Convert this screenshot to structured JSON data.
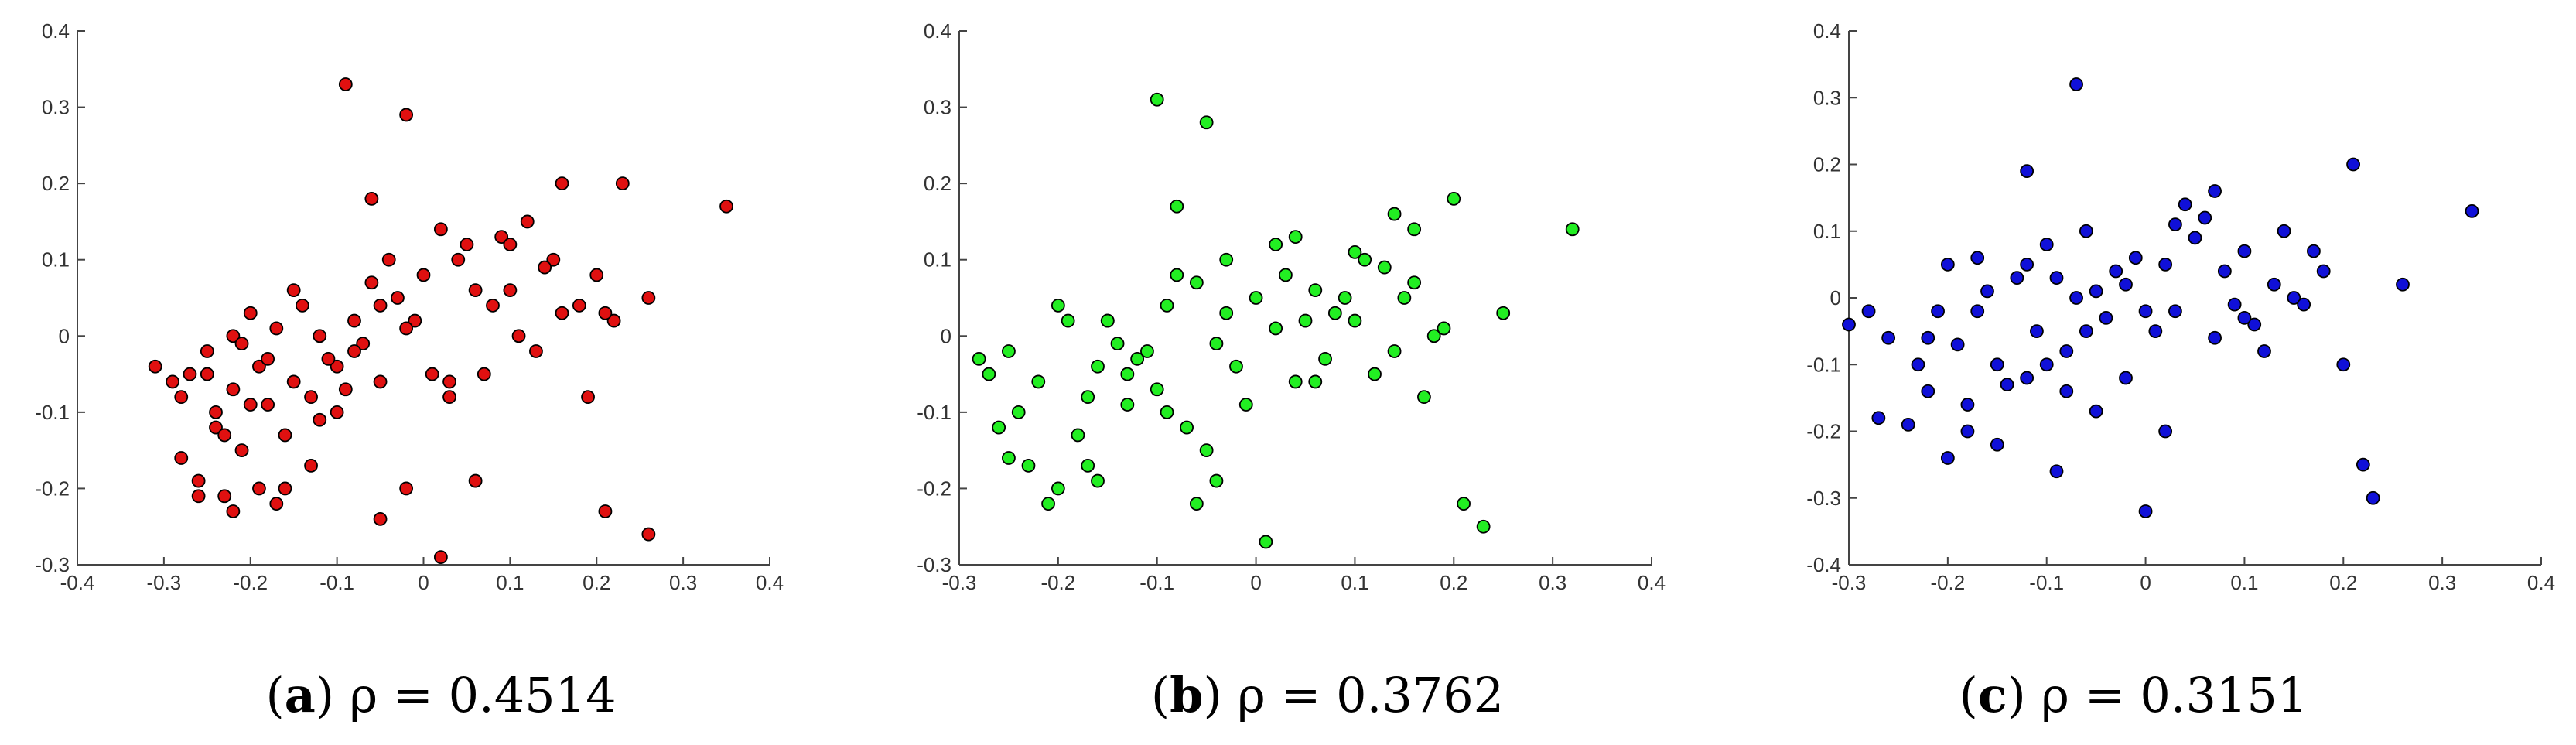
{
  "figure": {
    "panels": [
      {
        "letter": "a",
        "caption": "ρ = 0.4514"
      },
      {
        "letter": "b",
        "caption": "ρ = 0.3762"
      },
      {
        "letter": "c",
        "caption": "ρ = 0.3151"
      }
    ]
  },
  "chart_data": [
    {
      "type": "scatter",
      "panel": "a",
      "title": "",
      "xlabel": "",
      "ylabel": "",
      "xlim": [
        -0.4,
        0.4
      ],
      "ylim": [
        -0.3,
        0.4
      ],
      "xticks": [
        -0.4,
        -0.3,
        -0.2,
        -0.1,
        0,
        0.1,
        0.2,
        0.3,
        0.4
      ],
      "yticks": [
        -0.3,
        -0.2,
        -0.1,
        0,
        0.1,
        0.2,
        0.3,
        0.4
      ],
      "xtick_labels": [
        "-0.4",
        "-0.3",
        "-0.2",
        "-0.1",
        "0",
        "0.1",
        "0.2",
        "0.3",
        "0.4"
      ],
      "ytick_labels": [
        "-0.3",
        "-0.2",
        "-0.1",
        "0",
        "0.1",
        "0.2",
        "0.3",
        "0.4"
      ],
      "grid": false,
      "marker_color": "#e01010",
      "marker_edge": "#000000",
      "correlation": 0.4514,
      "series": [
        {
          "x": [
            -0.31,
            -0.29,
            -0.28,
            -0.27,
            -0.28,
            -0.26,
            -0.26,
            -0.24,
            -0.25,
            -0.23,
            -0.22,
            -0.21,
            -0.19,
            -0.17,
            -0.16,
            -0.13,
            -0.09,
            -0.02,
            -0.06,
            -0.02,
            -0.05,
            0.02,
            0.06,
            0.03,
            0.21,
            0.26,
            0.35,
            0.16,
            0.23,
            0.22,
            0.26,
            0.21,
            0.12,
            -0.2,
            -0.15,
            -0.25,
            -0.22,
            -0.18,
            -0.22,
            -0.24,
            -0.12,
            -0.1,
            -0.08,
            -0.05,
            0.0,
            0.05,
            0.1,
            0.15,
            0.2,
            0.13,
            0.08,
            0.03,
            -0.03,
            -0.07,
            -0.11,
            -0.15,
            -0.19,
            -0.21,
            -0.17,
            -0.13,
            -0.09,
            -0.05,
            -0.01,
            0.04,
            0.09,
            0.14,
            0.18,
            0.11,
            0.06,
            0.01,
            -0.04,
            -0.08,
            -0.12,
            -0.16,
            -0.2,
            -0.23,
            -0.14,
            -0.06,
            0.02,
            0.1,
            0.16,
            0.19,
            0.07,
            -0.02,
            -0.1,
            -0.18
          ],
          "y": [
            -0.04,
            -0.06,
            -0.08,
            -0.05,
            -0.16,
            -0.19,
            -0.21,
            -0.12,
            -0.05,
            -0.21,
            -0.23,
            -0.15,
            -0.2,
            -0.22,
            -0.2,
            -0.17,
            0.33,
            0.29,
            0.18,
            -0.2,
            -0.24,
            -0.29,
            -0.19,
            -0.06,
            -0.23,
            -0.26,
            0.17,
            0.2,
            0.2,
            0.02,
            0.05,
            0.03,
            0.15,
            0.03,
            0.06,
            -0.02,
            -0.07,
            -0.09,
            0.0,
            -0.1,
            0.0,
            -0.04,
            0.02,
            -0.06,
            0.08,
            0.12,
            0.06,
            0.1,
            0.08,
            -0.02,
            0.04,
            -0.08,
            0.05,
            -0.01,
            -0.03,
            -0.06,
            -0.04,
            -0.01,
            0.01,
            -0.08,
            -0.07,
            0.04,
            0.02,
            0.1,
            0.13,
            0.09,
            0.04,
            0.0,
            0.06,
            -0.05,
            0.1,
            -0.02,
            -0.11,
            -0.13,
            -0.09,
            -0.13,
            0.04,
            0.07,
            0.14,
            0.12,
            0.03,
            -0.08,
            -0.05,
            0.01,
            -0.1,
            -0.03
          ]
        }
      ]
    },
    {
      "type": "scatter",
      "panel": "b",
      "title": "",
      "xlabel": "",
      "ylabel": "",
      "xlim": [
        -0.3,
        0.4
      ],
      "ylim": [
        -0.3,
        0.4
      ],
      "xticks": [
        -0.3,
        -0.2,
        -0.1,
        0,
        0.1,
        0.2,
        0.3,
        0.4
      ],
      "yticks": [
        -0.3,
        -0.2,
        -0.1,
        0,
        0.1,
        0.2,
        0.3,
        0.4
      ],
      "xtick_labels": [
        "-0.3",
        "-0.2",
        "-0.1",
        "0",
        "0.1",
        "0.2",
        "0.3",
        "0.4"
      ],
      "ytick_labels": [
        "-0.3",
        "-0.2",
        "-0.1",
        "0",
        "0.1",
        "0.2",
        "0.3",
        "0.4"
      ],
      "grid": false,
      "marker_color": "#22ee22",
      "marker_edge": "#000000",
      "correlation": 0.3762,
      "series": [
        {
          "x": [
            -0.28,
            -0.27,
            -0.25,
            -0.26,
            -0.25,
            -0.23,
            -0.2,
            -0.21,
            -0.17,
            -0.16,
            -0.1,
            -0.08,
            -0.05,
            -0.06,
            0.01,
            -0.04,
            0.21,
            0.2,
            0.23,
            0.32,
            0.25,
            0.19,
            0.17,
            0.14,
            -0.2,
            -0.15,
            -0.12,
            -0.08,
            -0.03,
            0.02,
            0.06,
            0.1,
            0.13,
            0.16,
            0.08,
            0.04,
            0.0,
            -0.04,
            -0.09,
            -0.13,
            -0.17,
            -0.22,
            -0.24,
            -0.19,
            -0.14,
            -0.1,
            -0.06,
            -0.02,
            0.03,
            0.07,
            0.11,
            0.15,
            0.18,
            0.12,
            0.05,
            -0.01,
            -0.07,
            -0.11,
            -0.16,
            -0.18,
            -0.13,
            -0.05,
            0.02,
            0.09,
            0.14,
            0.06,
            -0.03,
            -0.09,
            -0.15,
            0.04,
            0.1,
            0.16
          ],
          "y": [
            -0.03,
            -0.05,
            -0.02,
            -0.12,
            -0.16,
            -0.17,
            -0.2,
            -0.22,
            -0.17,
            -0.19,
            0.31,
            0.17,
            0.28,
            -0.22,
            -0.27,
            -0.19,
            -0.22,
            0.18,
            -0.25,
            0.14,
            0.03,
            0.01,
            -0.08,
            0.16,
            0.04,
            0.02,
            -0.03,
            0.08,
            0.1,
            0.12,
            0.06,
            0.11,
            0.09,
            0.14,
            0.03,
            -0.06,
            0.05,
            -0.01,
            0.04,
            -0.05,
            -0.08,
            -0.06,
            -0.1,
            0.02,
            -0.01,
            -0.07,
            0.07,
            -0.04,
            0.08,
            -0.03,
            0.1,
            0.05,
            0.0,
            -0.05,
            0.02,
            -0.09,
            -0.12,
            -0.02,
            -0.04,
            -0.13,
            -0.09,
            -0.15,
            0.01,
            0.05,
            -0.02,
            -0.06,
            0.03,
            -0.1,
            0.02,
            0.13,
            0.02,
            0.07
          ]
        }
      ]
    },
    {
      "type": "scatter",
      "panel": "c",
      "title": "",
      "xlabel": "",
      "ylabel": "",
      "xlim": [
        -0.3,
        0.4
      ],
      "ylim": [
        -0.4,
        0.4
      ],
      "xticks": [
        -0.3,
        -0.2,
        -0.1,
        0,
        0.1,
        0.2,
        0.3,
        0.4
      ],
      "yticks": [
        -0.4,
        -0.3,
        -0.2,
        -0.1,
        0,
        0.1,
        0.2,
        0.3,
        0.4
      ],
      "xtick_labels": [
        "-0.3",
        "-0.2",
        "-0.1",
        "0",
        "0.1",
        "0.2",
        "0.3",
        "0.4"
      ],
      "ytick_labels": [
        "-0.4",
        "-0.3",
        "-0.2",
        "-0.1",
        "0",
        "0.1",
        "0.2",
        "0.3",
        "0.4"
      ],
      "grid": false,
      "marker_color": "#1010d8",
      "marker_edge": "#000000",
      "correlation": 0.3151,
      "series": [
        {
          "x": [
            -0.3,
            -0.28,
            -0.26,
            -0.27,
            -0.24,
            -0.22,
            -0.2,
            -0.18,
            -0.15,
            -0.12,
            -0.07,
            -0.09,
            0.0,
            0.02,
            0.21,
            0.22,
            0.23,
            0.26,
            0.33,
            0.2,
            -0.05,
            -0.08,
            -0.2,
            -0.17,
            -0.13,
            -0.1,
            -0.06,
            -0.02,
            0.02,
            0.06,
            0.1,
            0.14,
            0.18,
            0.15,
            0.11,
            0.07,
            0.03,
            -0.01,
            -0.04,
            -0.08,
            -0.11,
            -0.15,
            -0.19,
            -0.23,
            -0.21,
            -0.16,
            -0.12,
            -0.07,
            -0.03,
            0.01,
            0.05,
            0.09,
            0.13,
            0.17,
            0.12,
            0.08,
            0.04,
            0.0,
            -0.05,
            -0.1,
            -0.14,
            -0.18,
            -0.22,
            -0.12,
            -0.06,
            0.03,
            0.1,
            0.16,
            0.07,
            -0.02,
            -0.09,
            -0.17
          ],
          "y": [
            -0.04,
            -0.02,
            -0.06,
            -0.18,
            -0.19,
            -0.14,
            -0.24,
            -0.2,
            -0.22,
            0.19,
            0.32,
            -0.26,
            -0.32,
            -0.2,
            0.2,
            -0.25,
            -0.3,
            0.02,
            0.13,
            -0.1,
            -0.17,
            -0.14,
            0.05,
            0.06,
            0.03,
            0.08,
            0.1,
            0.02,
            0.05,
            0.12,
            0.07,
            0.1,
            0.04,
            0.0,
            -0.04,
            -0.06,
            -0.02,
            0.06,
            -0.03,
            -0.08,
            -0.05,
            -0.1,
            -0.07,
            -0.1,
            -0.02,
            0.01,
            -0.12,
            0.0,
            0.04,
            -0.05,
            0.09,
            -0.01,
            0.02,
            0.07,
            -0.08,
            0.04,
            0.14,
            -0.02,
            0.01,
            -0.1,
            -0.13,
            -0.16,
            -0.06,
            0.05,
            -0.05,
            0.11,
            -0.03,
            -0.01,
            0.16,
            -0.12,
            0.03,
            -0.02
          ]
        }
      ]
    }
  ]
}
